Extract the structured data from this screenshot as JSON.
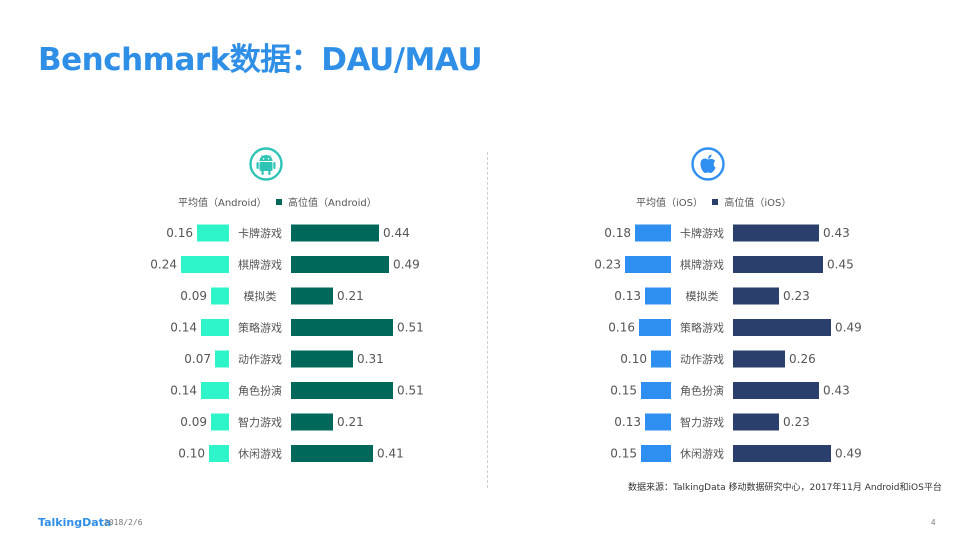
{
  "page": {
    "title": "Benchmark数据：DAU/MAU",
    "source_note": "数据来源：TalkingData 移动数据研究中心，2017年11月 Android和iOS平台",
    "brand": "TalkingData",
    "date": "2018/2/6",
    "page_number": "4"
  },
  "colors": {
    "title": "#2f8fe6",
    "android_avg": "#2ef5c9",
    "android_high": "#00685a",
    "ios_avg": "#2e8ff0",
    "ios_high": "#2b3f6c",
    "android_icon": "#2ec4b6",
    "ios_icon": "#2e8ff0"
  },
  "legend": {
    "android_avg": "平均值（Android）",
    "android_high": "高位值（Android）",
    "ios_avg": "平均值（iOS）",
    "ios_high": "高位值（iOS）"
  },
  "icons": {
    "android": "android-robot-icon",
    "ios": "apple-logo-icon"
  },
  "chart_data": [
    {
      "type": "bar",
      "platform": "Android",
      "categories": [
        "卡牌游戏",
        "棋牌游戏",
        "模拟类",
        "策略游戏",
        "动作游戏",
        "角色扮演",
        "智力游戏",
        "休闲游戏"
      ],
      "series": [
        {
          "name": "平均值（Android）",
          "values": [
            0.16,
            0.24,
            0.09,
            0.14,
            0.07,
            0.14,
            0.09,
            0.1
          ],
          "labels": [
            "0.16",
            "0.24",
            "0.09",
            "0.14",
            "0.07",
            "0.14",
            "0.09",
            "0.10"
          ]
        },
        {
          "name": "高位值（Android）",
          "values": [
            0.44,
            0.49,
            0.21,
            0.51,
            0.31,
            0.51,
            0.21,
            0.41
          ],
          "labels": [
            "0.44",
            "0.49",
            "0.21",
            "0.51",
            "0.31",
            "0.51",
            "0.21",
            "0.41"
          ]
        }
      ],
      "legend_position": "top"
    },
    {
      "type": "bar",
      "platform": "iOS",
      "categories": [
        "卡牌游戏",
        "棋牌游戏",
        "模拟类",
        "策略游戏",
        "动作游戏",
        "角色扮演",
        "智力游戏",
        "休闲游戏"
      ],
      "series": [
        {
          "name": "平均值（iOS）",
          "values": [
            0.18,
            0.23,
            0.13,
            0.16,
            0.1,
            0.15,
            0.13,
            0.15
          ],
          "labels": [
            "0.18",
            "0.23",
            "0.13",
            "0.16",
            "0.10",
            "0.15",
            "0.13",
            "0.15"
          ]
        },
        {
          "name": "高位值（iOS）",
          "values": [
            0.43,
            0.45,
            0.23,
            0.49,
            0.26,
            0.43,
            0.23,
            0.49
          ],
          "labels": [
            "0.43",
            "0.45",
            "0.23",
            "0.49",
            "0.26",
            "0.43",
            "0.23",
            "0.49"
          ]
        }
      ],
      "legend_position": "top"
    }
  ]
}
